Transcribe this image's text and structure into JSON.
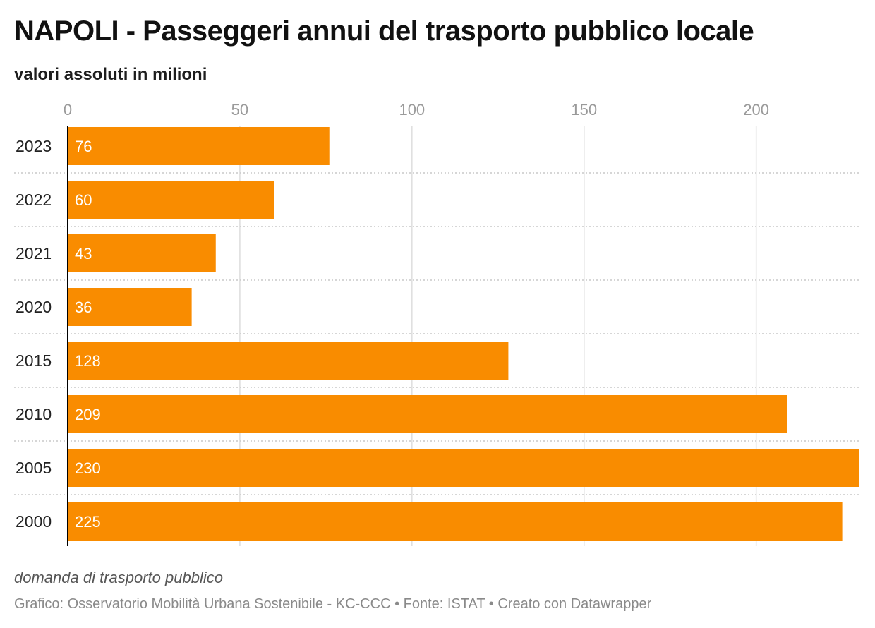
{
  "title": "NAPOLI - Passeggeri annui del trasporto pubblico locale",
  "subtitle": "valori assoluti in milioni",
  "description": "domanda di trasporto pubblico",
  "footer": "Grafico: Osservatorio Mobilità Urbana Sostenibile - KC-CCC • Fonte: ISTAT • Creato con Datawrapper",
  "colors": {
    "bar": "#f98c00",
    "grid": "#dddddd",
    "separator": "#c8c8c8",
    "axis": "#000000"
  },
  "chart_data": {
    "type": "bar",
    "orientation": "horizontal",
    "categories": [
      "2023",
      "2022",
      "2021",
      "2020",
      "2015",
      "2010",
      "2005",
      "2000"
    ],
    "values": [
      76,
      60,
      43,
      36,
      128,
      209,
      230,
      225
    ],
    "value_labels": [
      "76",
      "60",
      "43",
      "36",
      "128",
      "209",
      "230",
      "225"
    ],
    "xlim": [
      0,
      230
    ],
    "xticks": [
      0,
      50,
      100,
      150,
      200
    ],
    "xtick_labels": [
      "0",
      "50",
      "100",
      "150",
      "200"
    ],
    "grid": true,
    "xaxis_position": "top"
  }
}
